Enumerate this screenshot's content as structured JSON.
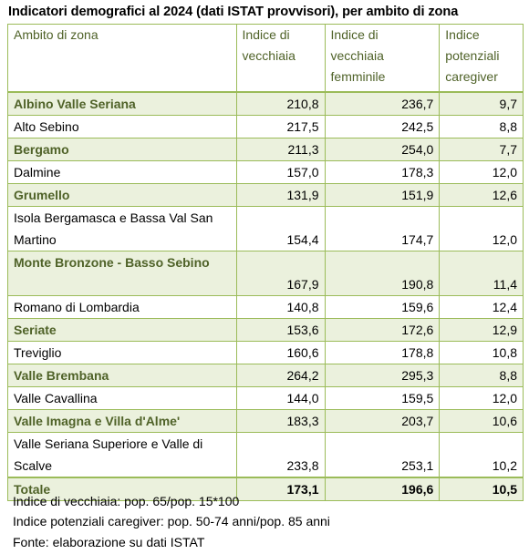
{
  "title": "Indicatori demografici al 2024 (dati ISTAT provvisori), per ambito di zona",
  "columns": [
    "Ambito di zona",
    "Indice di vecchiaia",
    "Indice di vecchiaia femminile",
    "Indice potenziali caregiver"
  ],
  "rows": [
    {
      "name": "Albino Valle Seriana",
      "v1": "210,8",
      "v2": "236,7",
      "v3": "9,7"
    },
    {
      "name": "Alto Sebino",
      "v1": "217,5",
      "v2": "242,5",
      "v3": "8,8"
    },
    {
      "name": "Bergamo",
      "v1": "211,3",
      "v2": "254,0",
      "v3": "7,7"
    },
    {
      "name": "Dalmine",
      "v1": "157,0",
      "v2": "178,3",
      "v3": "12,0"
    },
    {
      "name": "Grumello",
      "v1": "131,9",
      "v2": "151,9",
      "v3": "12,6"
    },
    {
      "name": "Isola Bergamasca e Bassa Val San Martino",
      "v1": "154,4",
      "v2": "174,7",
      "v3": "12,0"
    },
    {
      "name": "Monte Bronzone - Basso Sebino",
      "v1": "167,9",
      "v2": "190,8",
      "v3": "11,4"
    },
    {
      "name": "Romano di Lombardia",
      "v1": "140,8",
      "v2": "159,6",
      "v3": "12,4"
    },
    {
      "name": "Seriate",
      "v1": "153,6",
      "v2": "172,6",
      "v3": "12,9"
    },
    {
      "name": "Treviglio",
      "v1": "160,6",
      "v2": "178,8",
      "v3": "10,8"
    },
    {
      "name": "Valle Brembana",
      "v1": "264,2",
      "v2": "295,3",
      "v3": "8,8"
    },
    {
      "name": "Valle Cavallina",
      "v1": "144,0",
      "v2": "159,5",
      "v3": "12,0"
    },
    {
      "name": "Valle Imagna e Villa d'Alme'",
      "v1": "183,3",
      "v2": "203,7",
      "v3": "10,6"
    },
    {
      "name": "Valle Seriana Superiore e Valle di Scalve",
      "v1": "233,8",
      "v2": "253,1",
      "v3": "10,2"
    }
  ],
  "total": {
    "name": "Totale",
    "v1": "173,1",
    "v2": "196,6",
    "v3": "10,5"
  },
  "notes": [
    "Indice di vecchiaia: pop. 65/pop. 15*100",
    "Indice potenziali caregiver: pop. 50-74 anni/pop. 85 anni",
    "Fonte: elaborazione su dati ISTAT"
  ],
  "colors": {
    "accent": "#9bbb59",
    "band": "#ebf1dd",
    "header_text": "#4f6228"
  }
}
